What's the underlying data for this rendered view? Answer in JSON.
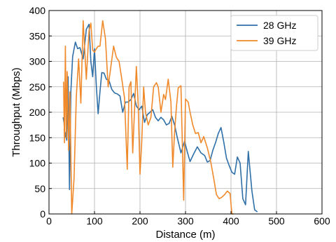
{
  "chart_data": {
    "type": "line",
    "title": "",
    "xlabel": "Distance (m)",
    "ylabel": "Throughput (Mbps)",
    "xlim": [
      0,
      600
    ],
    "ylim": [
      0,
      400
    ],
    "xticks": [
      0,
      100,
      200,
      300,
      400,
      500,
      600
    ],
    "yticks": [
      0,
      50,
      100,
      150,
      200,
      250,
      300,
      350,
      400
    ],
    "grid": true,
    "legend_position": "top-right",
    "series": [
      {
        "name": "28 GHz",
        "color": "#2f6fa8",
        "x": [
          31,
          33,
          35,
          37,
          39,
          42,
          45,
          48,
          52,
          58,
          63,
          68,
          75,
          82,
          88,
          92,
          96,
          100,
          104,
          108,
          112,
          116,
          121,
          126,
          132,
          138,
          144,
          150,
          156,
          162,
          168,
          174,
          180,
          186,
          192,
          198,
          204,
          210,
          216,
          222,
          228,
          234,
          240,
          246,
          252,
          258,
          264,
          270,
          276,
          282,
          290,
          298,
          304,
          310,
          318,
          326,
          334,
          342,
          348,
          354,
          360,
          366,
          372,
          378,
          384,
          390,
          396,
          402,
          408,
          414,
          420,
          426,
          432,
          438,
          446,
          452,
          458
        ],
        "values": [
          190,
          180,
          150,
          160,
          145,
          270,
          48,
          240,
          310,
          338,
          325,
          327,
          305,
          363,
          373,
          300,
          270,
          325,
          252,
          197,
          240,
          278,
          277,
          265,
          262,
          245,
          238,
          236,
          232,
          200,
          220,
          220,
          225,
          237,
          212,
          205,
          212,
          180,
          195,
          200,
          205,
          190,
          183,
          190,
          185,
          175,
          178,
          192,
          175,
          150,
          120,
          143,
          122,
          103,
          118,
          132,
          120,
          115,
          102,
          105,
          125,
          140,
          158,
          170,
          142,
          110,
          95,
          82,
          78,
          112,
          100,
          30,
          18,
          123,
          45,
          8,
          4
        ]
      },
      {
        "name": "39 GHz",
        "color": "#f0892a",
        "x": [
          32,
          34,
          36,
          38,
          40,
          43,
          46,
          50,
          55,
          60,
          65,
          70,
          75,
          82,
          88,
          92,
          96,
          100,
          104,
          108,
          112,
          118,
          124,
          130,
          136,
          142,
          148,
          154,
          160,
          166,
          172,
          176,
          180,
          184,
          188,
          192,
          196,
          200,
          204,
          208,
          212,
          218,
          224,
          230,
          236,
          240,
          246,
          252,
          256,
          262,
          268,
          272,
          276,
          280,
          284,
          290,
          296,
          300,
          306,
          310,
          316,
          322,
          328,
          334,
          340,
          348,
          356,
          362,
          368,
          374,
          380,
          386,
          392,
          398,
          402,
          406
        ],
        "values": [
          260,
          140,
          330,
          150,
          280,
          125,
          240,
          0,
          70,
          230,
          305,
          218,
          380,
          265,
          360,
          375,
          322,
          318,
          325,
          330,
          330,
          380,
          345,
          250,
          290,
          330,
          308,
          300,
          265,
          228,
          88,
          250,
          260,
          120,
          205,
          290,
          215,
          78,
          145,
          250,
          200,
          175,
          190,
          250,
          258,
          250,
          200,
          235,
          225,
          265,
          220,
          92,
          160,
          210,
          248,
          252,
          27,
          226,
          220,
          200,
          175,
          158,
          160,
          140,
          152,
          130,
          100,
          70,
          38,
          30,
          33,
          38,
          45,
          40,
          0,
          0
        ]
      }
    ]
  }
}
